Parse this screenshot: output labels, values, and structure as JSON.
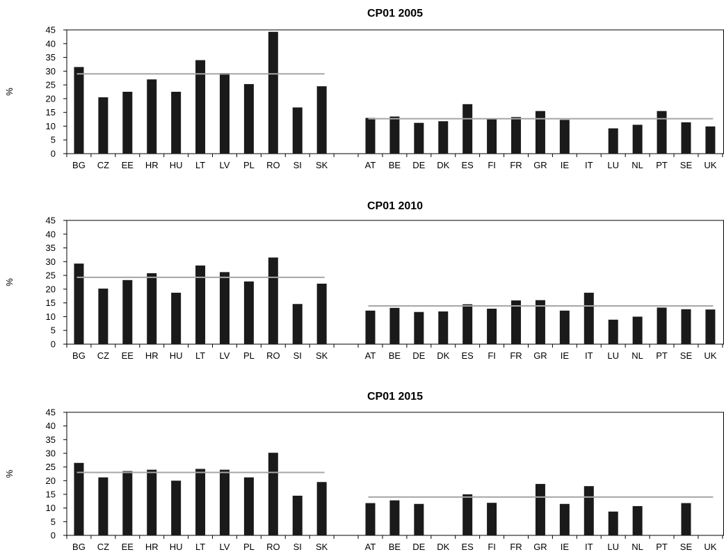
{
  "chart_data": [
    {
      "type": "bar",
      "title": "CP01 2005",
      "ylabel": "%",
      "xlabel": "",
      "ylim": [
        0,
        45
      ],
      "yticks": [
        0,
        5,
        10,
        15,
        20,
        25,
        30,
        35,
        40,
        45
      ],
      "grid": false,
      "legend": "none",
      "categories": [
        "BG",
        "CZ",
        "EE",
        "HR",
        "HU",
        "LT",
        "LV",
        "PL",
        "RO",
        "SI",
        "SK",
        "",
        "AT",
        "BE",
        "DE",
        "DK",
        "ES",
        "FI",
        "FR",
        "GR",
        "IE",
        "IT",
        "LU",
        "NL",
        "PT",
        "SE",
        "UK"
      ],
      "values": [
        31.5,
        20.5,
        22.5,
        27,
        22.5,
        34,
        29.3,
        25.3,
        44.3,
        16.8,
        24.5,
        null,
        13,
        13.5,
        11.2,
        11.8,
        18,
        12.5,
        13.3,
        15.5,
        12.3,
        null,
        9.2,
        10.5,
        15.5,
        11.4,
        9.9
      ],
      "group_averages": [
        {
          "from": "BG",
          "to": "SK",
          "value": 29
        },
        {
          "from": "AT",
          "to": "UK",
          "value": 12.7
        }
      ],
      "colors": {
        "bar": "#1a1a1a",
        "average_line": "#a6a6a6"
      }
    },
    {
      "type": "bar",
      "title": "CP01 2010",
      "ylabel": "%",
      "xlabel": "",
      "ylim": [
        0,
        45
      ],
      "yticks": [
        0,
        5,
        10,
        15,
        20,
        25,
        30,
        35,
        40,
        45
      ],
      "grid": false,
      "legend": "none",
      "categories": [
        "BG",
        "CZ",
        "EE",
        "HR",
        "HU",
        "LT",
        "LV",
        "PL",
        "RO",
        "SI",
        "SK",
        "",
        "AT",
        "BE",
        "DE",
        "DK",
        "ES",
        "FI",
        "FR",
        "GR",
        "IE",
        "IT",
        "LU",
        "NL",
        "PT",
        "SE",
        "UK"
      ],
      "values": [
        29.3,
        20.2,
        23.3,
        25.8,
        18.7,
        28.6,
        26.2,
        22.8,
        31.5,
        14.6,
        22,
        null,
        12.2,
        13.2,
        11.7,
        11.9,
        14.5,
        12.9,
        15.9,
        16,
        12.2,
        18.7,
        8.9,
        10,
        13.3,
        12.7,
        12.6
      ],
      "group_averages": [
        {
          "from": "BG",
          "to": "SK",
          "value": 24.3
        },
        {
          "from": "AT",
          "to": "UK",
          "value": 13.9
        }
      ],
      "colors": {
        "bar": "#1a1a1a",
        "average_line": "#a6a6a6"
      }
    },
    {
      "type": "bar",
      "title": "CP01 2015",
      "ylabel": "%",
      "xlabel": "",
      "ylim": [
        0,
        45
      ],
      "yticks": [
        0,
        5,
        10,
        15,
        20,
        25,
        30,
        35,
        40,
        45
      ],
      "grid": false,
      "legend": "none",
      "categories": [
        "BG",
        "CZ",
        "EE",
        "HR",
        "HU",
        "LT",
        "LV",
        "PL",
        "RO",
        "SI",
        "SK",
        "",
        "AT",
        "BE",
        "DE",
        "DK",
        "ES",
        "FI",
        "FR",
        "GR",
        "IE",
        "IT",
        "LU",
        "NL",
        "PT",
        "SE",
        "UK"
      ],
      "values": [
        26.5,
        21.2,
        23.5,
        24,
        20,
        24.3,
        24,
        21.2,
        30.2,
        14.5,
        19.5,
        null,
        11.8,
        12.8,
        11.5,
        null,
        15,
        11.9,
        null,
        18.8,
        11.5,
        18,
        8.7,
        10.7,
        null,
        11.8,
        null
      ],
      "group_averages": [
        {
          "from": "BG",
          "to": "SK",
          "value": 23
        },
        {
          "from": "AT",
          "to": "UK",
          "value": 14
        }
      ],
      "colors": {
        "bar": "#1a1a1a",
        "average_line": "#a6a6a6"
      }
    }
  ]
}
